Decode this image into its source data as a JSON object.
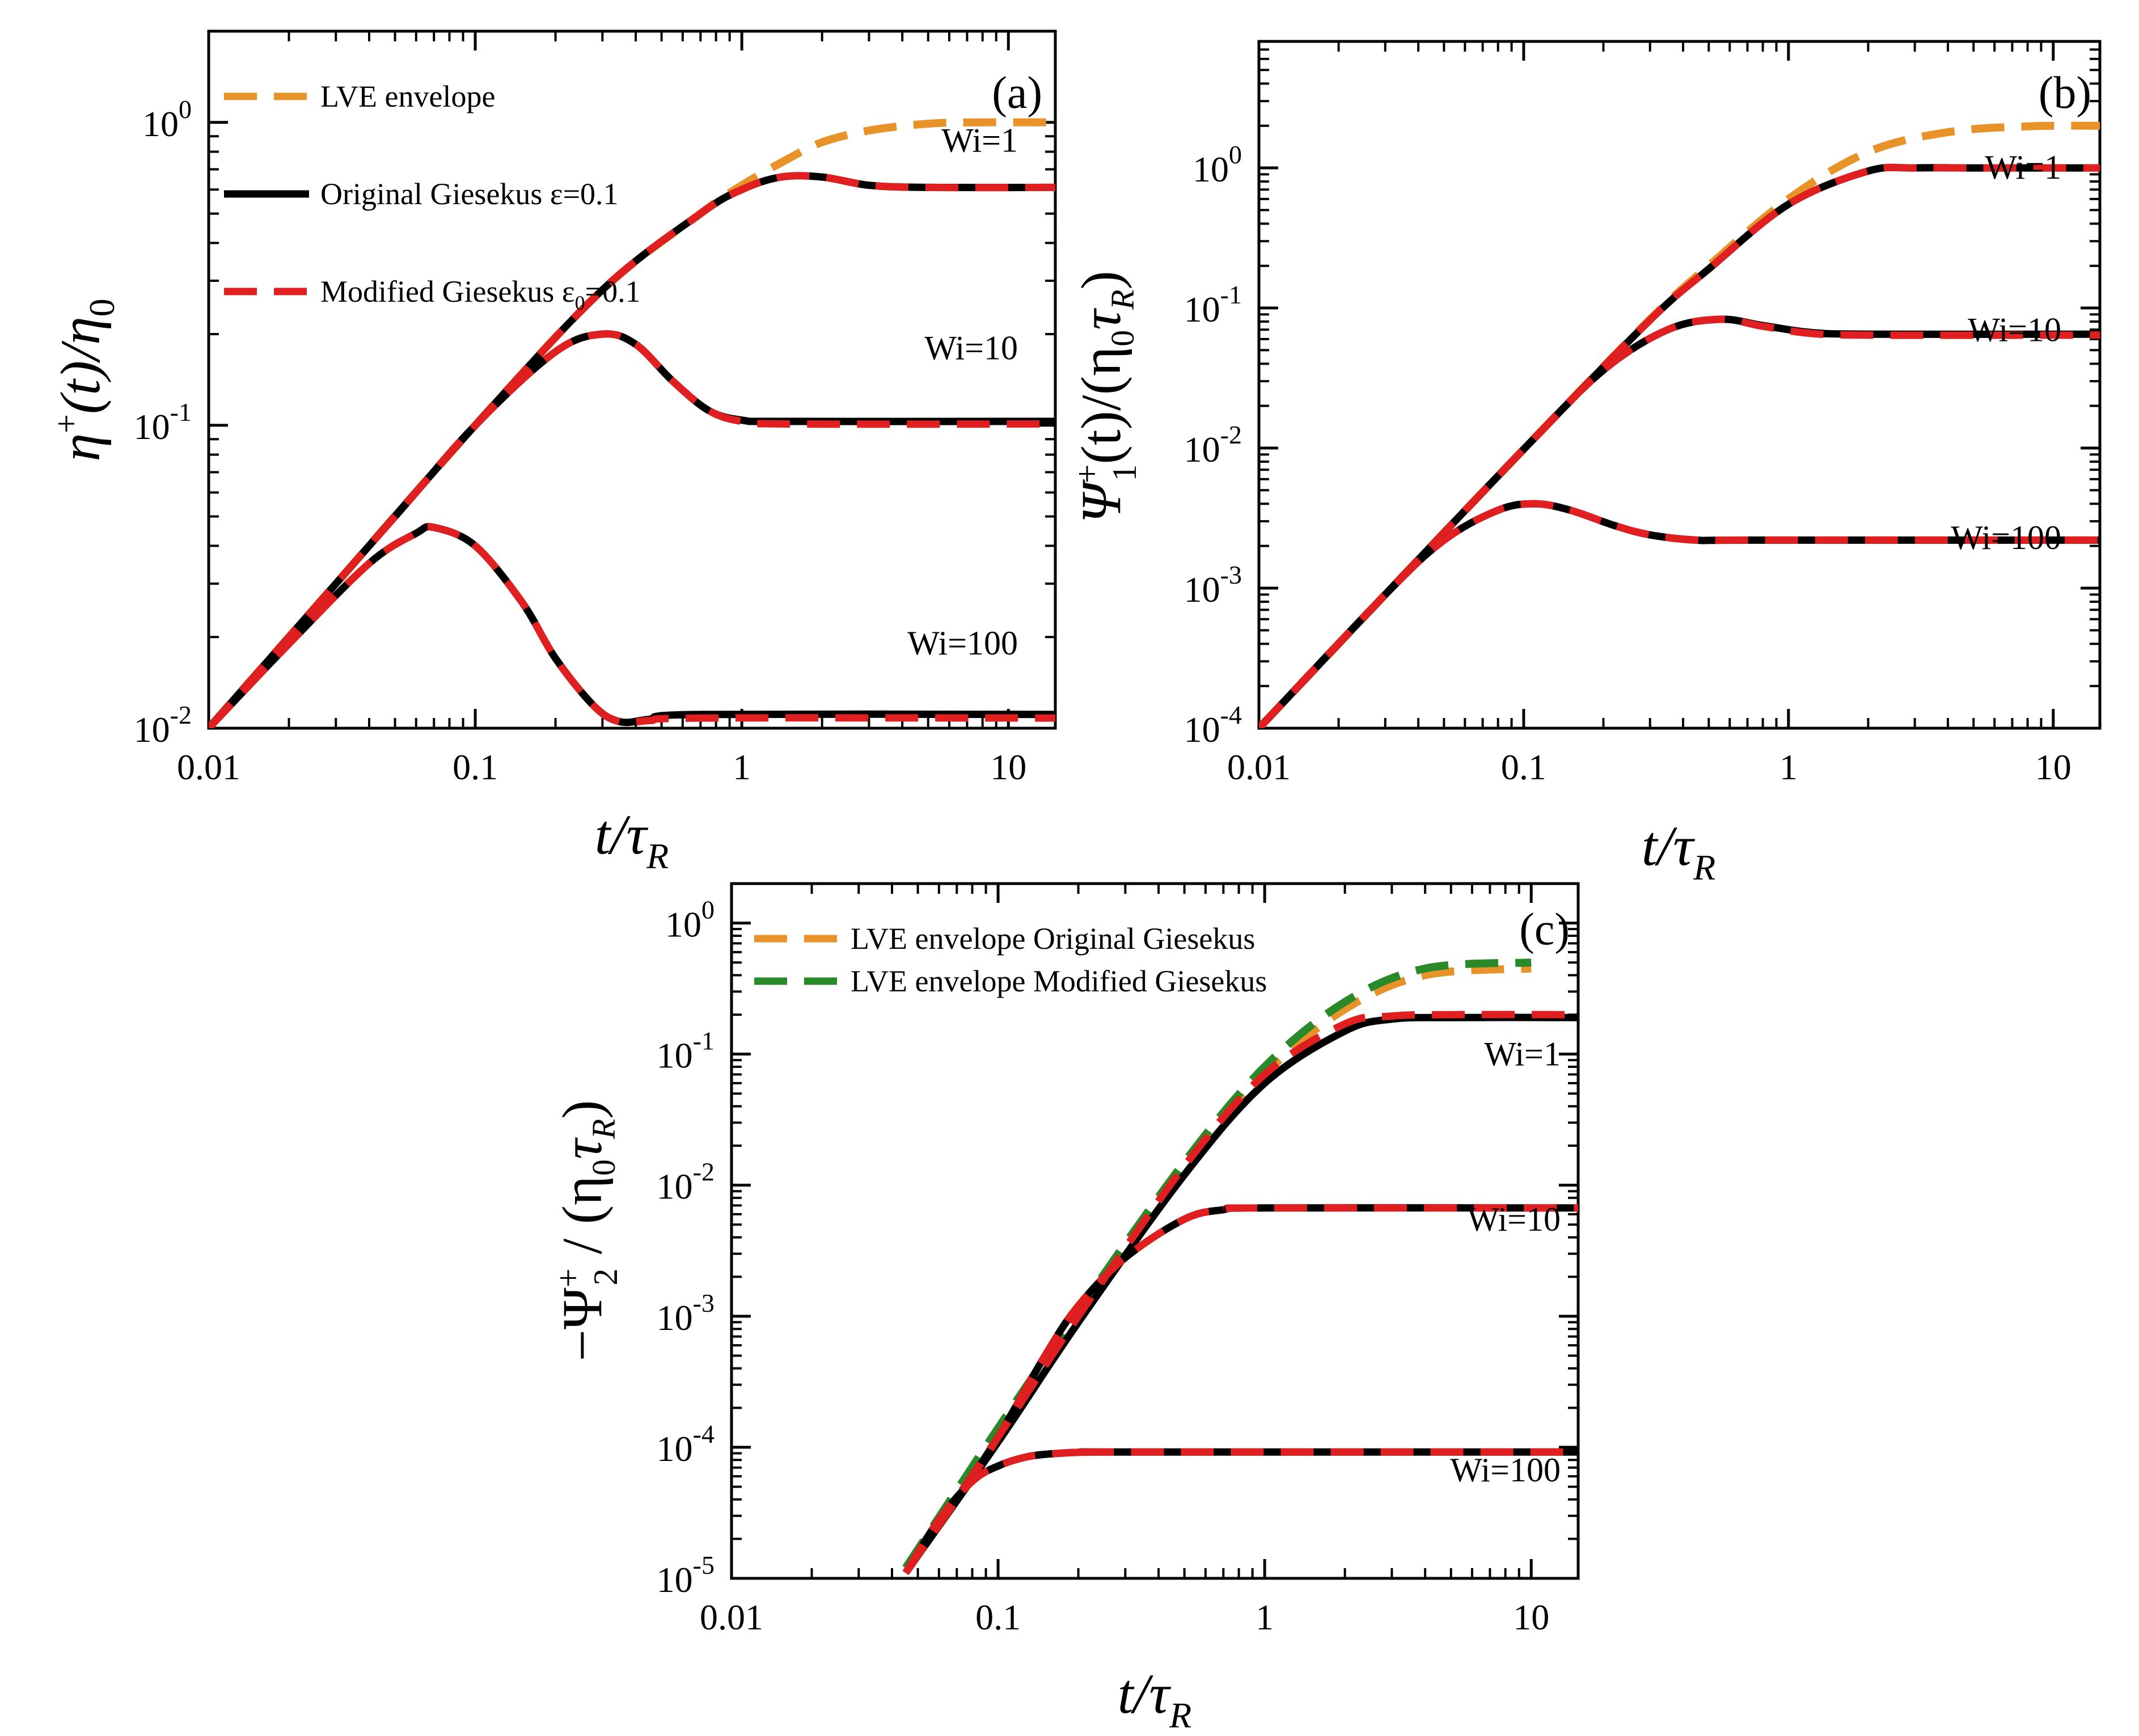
{
  "chart_data": [
    {
      "panel": "a",
      "type": "line",
      "panel_label": "(a)",
      "xlabel": "t/τ_R",
      "xlabel_parts": {
        "main": "t/τ",
        "sub": "R"
      },
      "ylabel": "η+(t)/η0",
      "ylabel_parts": {
        "main": "η",
        "sup": "+",
        "mid": "(t)/η",
        "sub": "0"
      },
      "xscale": "log",
      "yscale": "log",
      "xlim": [
        0.01,
        15
      ],
      "ylim": [
        0.01,
        2.0
      ],
      "xticks": [
        {
          "value": 0.01,
          "label": "0.01"
        },
        {
          "value": 0.1,
          "label": "0.1"
        },
        {
          "value": 1,
          "label": "1"
        },
        {
          "value": 10,
          "label": "10"
        }
      ],
      "yticks": [
        {
          "value": 0.01,
          "base": "10",
          "exp": "-2"
        },
        {
          "value": 0.1,
          "base": "10",
          "exp": "-1"
        },
        {
          "value": 1,
          "base": "10",
          "exp": "0"
        }
      ],
      "legend": {
        "location": "top-left",
        "entries": [
          {
            "label": "LVE envelope",
            "color": "#e8922a",
            "style": "dashed"
          },
          {
            "label": "Original Giesekus ε=0.1",
            "color": "#000000",
            "style": "solid"
          },
          {
            "label": "Modified Giesekus ε0=0.1",
            "color": "#e02020",
            "style": "dashed"
          }
        ]
      },
      "annotations": [
        {
          "text": "Wi=1",
          "at": [
            6.0,
            0.8
          ]
        },
        {
          "text": "Wi=10",
          "at": [
            6.0,
            0.165
          ]
        },
        {
          "text": "Wi=100",
          "at": [
            6.0,
            0.0175
          ]
        }
      ],
      "series": [
        {
          "name": "LVE envelope",
          "color": "#e8922a",
          "style": "dashed",
          "x": [
            0.01,
            0.03,
            0.1,
            0.3,
            0.7,
            1.0,
            1.5,
            2.0,
            3.0,
            5.0,
            8.0,
            15.0
          ],
          "y": [
            0.01,
            0.03,
            0.1,
            0.28,
            0.5,
            0.62,
            0.76,
            0.86,
            0.94,
            0.99,
            1.0,
            1.0
          ]
        },
        {
          "name": "Original Giesekus ε=0.1, Wi=1",
          "color": "#000000",
          "style": "solid",
          "x": [
            0.01,
            0.03,
            0.1,
            0.3,
            0.7,
            1.0,
            1.4,
            2.0,
            3.0,
            5.0,
            15.0
          ],
          "y": [
            0.01,
            0.03,
            0.1,
            0.28,
            0.5,
            0.6,
            0.66,
            0.66,
            0.62,
            0.61,
            0.61
          ]
        },
        {
          "name": "Modified Giesekus ε0=0.1, Wi=1",
          "color": "#e02020",
          "style": "dashed",
          "x": [
            0.01,
            0.03,
            0.1,
            0.3,
            0.7,
            1.0,
            1.4,
            2.0,
            3.0,
            5.0,
            15.0
          ],
          "y": [
            0.01,
            0.03,
            0.1,
            0.28,
            0.5,
            0.6,
            0.66,
            0.66,
            0.62,
            0.61,
            0.61
          ]
        },
        {
          "name": "Original Giesekus ε=0.1, Wi=10",
          "color": "#000000",
          "style": "solid",
          "x": [
            0.01,
            0.05,
            0.1,
            0.2,
            0.3,
            0.4,
            0.55,
            0.75,
            1.0,
            1.5,
            15.0
          ],
          "y": [
            0.01,
            0.05,
            0.1,
            0.175,
            0.2,
            0.185,
            0.14,
            0.112,
            0.104,
            0.103,
            0.103
          ]
        },
        {
          "name": "Modified Giesekus ε0=0.1, Wi=10",
          "color": "#e02020",
          "style": "dashed",
          "x": [
            0.01,
            0.05,
            0.1,
            0.2,
            0.3,
            0.4,
            0.55,
            0.75,
            1.0,
            1.5,
            15.0
          ],
          "y": [
            0.01,
            0.05,
            0.1,
            0.175,
            0.2,
            0.185,
            0.14,
            0.112,
            0.103,
            0.101,
            0.101
          ]
        },
        {
          "name": "Original Giesekus ε=0.1, Wi=100",
          "color": "#000000",
          "style": "solid",
          "x": [
            0.01,
            0.02,
            0.04,
            0.06,
            0.07,
            0.1,
            0.15,
            0.2,
            0.28,
            0.35,
            0.45,
            0.7,
            15.0
          ],
          "y": [
            0.01,
            0.019,
            0.035,
            0.044,
            0.046,
            0.04,
            0.026,
            0.017,
            0.0118,
            0.0105,
            0.0107,
            0.0111,
            0.0111
          ]
        },
        {
          "name": "Modified Giesekus ε0=0.1, Wi=100",
          "color": "#e02020",
          "style": "dashed",
          "x": [
            0.01,
            0.02,
            0.04,
            0.06,
            0.07,
            0.1,
            0.15,
            0.2,
            0.28,
            0.35,
            0.45,
            0.7,
            15.0
          ],
          "y": [
            0.01,
            0.019,
            0.035,
            0.044,
            0.046,
            0.04,
            0.026,
            0.017,
            0.0118,
            0.0105,
            0.0106,
            0.0108,
            0.0108
          ]
        }
      ]
    },
    {
      "panel": "b",
      "type": "line",
      "panel_label": "(b)",
      "xlabel": "t/τ_R",
      "xlabel_parts": {
        "main": "t/τ",
        "sub": "R"
      },
      "ylabel": "Ψ1+(t)/(η0τR)",
      "ylabel_parts": {
        "main": "Ψ",
        "sup": "+",
        "sub": "1",
        "rest": "(t)/(η",
        "sub2": "0",
        "tau": "τ",
        "sub3": "R",
        "close": ")"
      },
      "xscale": "log",
      "yscale": "log",
      "xlim": [
        0.01,
        15
      ],
      "ylim": [
        0.0001,
        8.0
      ],
      "xticks": [
        {
          "value": 0.01,
          "label": "0.01"
        },
        {
          "value": 0.1,
          "label": "0.1"
        },
        {
          "value": 1,
          "label": "1"
        },
        {
          "value": 10,
          "label": "10"
        }
      ],
      "yticks": [
        {
          "value": 0.0001,
          "base": "10",
          "exp": "-4"
        },
        {
          "value": 0.001,
          "base": "10",
          "exp": "-3"
        },
        {
          "value": 0.01,
          "base": "10",
          "exp": "-2"
        },
        {
          "value": 0.1,
          "base": "10",
          "exp": "-1"
        },
        {
          "value": 1,
          "base": "10",
          "exp": "0"
        }
      ],
      "annotations": [
        {
          "text": "Wi=1",
          "at": [
            6.0,
            0.84
          ]
        },
        {
          "text": "Wi=10",
          "at": [
            6.0,
            0.058
          ]
        },
        {
          "text": "Wi=100",
          "at": [
            6.0,
            0.0019
          ]
        }
      ],
      "series": [
        {
          "name": "LVE envelope",
          "color": "#e8922a",
          "style": "dashed",
          "x": [
            0.01,
            0.03,
            0.1,
            0.3,
            0.5,
            1.0,
            2.0,
            4.0,
            8.0,
            15.0
          ],
          "y": [
            0.0001,
            0.0009,
            0.0098,
            0.083,
            0.2,
            0.6,
            1.3,
            1.8,
            1.98,
            2.0
          ]
        },
        {
          "name": "Original Giesekus ε=0.1, Wi=1",
          "color": "#000000",
          "style": "solid",
          "x": [
            0.01,
            0.03,
            0.1,
            0.3,
            0.5,
            1.0,
            2.0,
            3.0,
            5.0,
            15.0
          ],
          "y": [
            0.0001,
            0.0009,
            0.0098,
            0.082,
            0.19,
            0.55,
            0.95,
            1.0,
            1.0,
            1.0
          ]
        },
        {
          "name": "Modified Giesekus ε0=0.1, Wi=1",
          "color": "#e02020",
          "style": "dashed",
          "x": [
            0.01,
            0.03,
            0.1,
            0.3,
            0.5,
            1.0,
            2.0,
            3.0,
            5.0,
            15.0
          ],
          "y": [
            0.0001,
            0.0009,
            0.0098,
            0.082,
            0.19,
            0.55,
            0.95,
            1.0,
            1.0,
            1.0
          ]
        },
        {
          "name": "Original Giesekus ε=0.1, Wi=10",
          "color": "#000000",
          "style": "solid",
          "x": [
            0.01,
            0.03,
            0.1,
            0.2,
            0.35,
            0.55,
            0.8,
            1.2,
            2.0,
            15.0
          ],
          "y": [
            0.0001,
            0.0009,
            0.0098,
            0.036,
            0.07,
            0.083,
            0.075,
            0.067,
            0.065,
            0.065
          ]
        },
        {
          "name": "Modified Giesekus ε0=0.1, Wi=10",
          "color": "#e02020",
          "style": "dashed",
          "x": [
            0.01,
            0.03,
            0.1,
            0.2,
            0.35,
            0.55,
            0.8,
            1.2,
            2.0,
            15.0
          ],
          "y": [
            0.0001,
            0.0009,
            0.0098,
            0.036,
            0.07,
            0.083,
            0.074,
            0.066,
            0.064,
            0.064
          ]
        },
        {
          "name": "Original Giesekus ε=0.1, Wi=100",
          "color": "#000000",
          "style": "solid",
          "x": [
            0.01,
            0.03,
            0.05,
            0.08,
            0.11,
            0.15,
            0.22,
            0.3,
            0.45,
            0.7,
            15.0
          ],
          "y": [
            0.0001,
            0.0009,
            0.0022,
            0.0036,
            0.004,
            0.0036,
            0.0028,
            0.0024,
            0.0022,
            0.0022,
            0.0022
          ]
        },
        {
          "name": "Modified Giesekus ε0=0.1, Wi=100",
          "color": "#e02020",
          "style": "dashed",
          "x": [
            0.01,
            0.03,
            0.05,
            0.08,
            0.11,
            0.15,
            0.22,
            0.3,
            0.45,
            0.7,
            15.0
          ],
          "y": [
            0.0001,
            0.0009,
            0.0022,
            0.0036,
            0.004,
            0.0036,
            0.0028,
            0.0024,
            0.0022,
            0.0022,
            0.0022
          ]
        }
      ]
    },
    {
      "panel": "c",
      "type": "line",
      "panel_label": "(c)",
      "xlabel": "t/τ_R",
      "xlabel_parts": {
        "main": "t/τ",
        "sub": "R"
      },
      "ylabel": "−Ψ2+/(η0τR)",
      "ylabel_parts": {
        "main": "−Ψ",
        "sup": "+",
        "sub": "2",
        "rest": " / (η",
        "sub2": "0",
        "tau": "τ",
        "sub3": "R",
        "close": ")"
      },
      "xscale": "log",
      "yscale": "log",
      "xlim": [
        0.01,
        15
      ],
      "ylim": [
        1e-05,
        2.0
      ],
      "xticks": [
        {
          "value": 0.01,
          "label": "0.01"
        },
        {
          "value": 0.1,
          "label": "0.1"
        },
        {
          "value": 1,
          "label": "1"
        },
        {
          "value": 10,
          "label": "10"
        }
      ],
      "yticks": [
        {
          "value": 1e-05,
          "base": "10",
          "exp": "-5"
        },
        {
          "value": 0.0001,
          "base": "10",
          "exp": "-4"
        },
        {
          "value": 0.001,
          "base": "10",
          "exp": "-3"
        },
        {
          "value": 0.01,
          "base": "10",
          "exp": "-2"
        },
        {
          "value": 0.1,
          "base": "10",
          "exp": "-1"
        },
        {
          "value": 1,
          "base": "10",
          "exp": "0"
        }
      ],
      "legend": {
        "location": "top-left",
        "entries": [
          {
            "label": "LVE envelope Original Giesekus",
            "color": "#e8922a",
            "style": "dashed"
          },
          {
            "label": "LVE envelope Modified Giesekus",
            "color": "#2a8a2a",
            "style": "dashed"
          }
        ]
      },
      "annotations": [
        {
          "text": "Wi=1",
          "at": [
            5.5,
            0.082
          ]
        },
        {
          "text": "Wi=10",
          "at": [
            5.5,
            0.0045
          ]
        },
        {
          "text": "Wi=100",
          "at": [
            5.5,
            5.5e-05
          ]
        }
      ],
      "series": [
        {
          "name": "LVE envelope Original Giesekus",
          "color": "#e8922a",
          "style": "dashed",
          "x": [
            0.045,
            0.1,
            0.2,
            0.5,
            1.0,
            2.0,
            4.0,
            10.0
          ],
          "y": [
            1.2e-05,
            0.00013,
            0.001,
            0.013,
            0.07,
            0.22,
            0.4,
            0.45
          ]
        },
        {
          "name": "LVE envelope Modified Giesekus",
          "color": "#2a8a2a",
          "style": "dashed",
          "x": [
            0.045,
            0.1,
            0.2,
            0.5,
            1.0,
            2.0,
            4.0,
            10.0
          ],
          "y": [
            1.2e-05,
            0.00014,
            0.0011,
            0.015,
            0.08,
            0.25,
            0.45,
            0.5
          ]
        },
        {
          "name": "Original Giesekus ε=0.1, Wi=1",
          "color": "#000000",
          "style": "solid",
          "x": [
            0.045,
            0.1,
            0.2,
            0.5,
            1.0,
            2.0,
            3.0,
            5.0,
            15.0
          ],
          "y": [
            1.1e-05,
            0.00011,
            0.0009,
            0.012,
            0.06,
            0.15,
            0.185,
            0.19,
            0.19
          ]
        },
        {
          "name": "Modified Giesekus ε0=0.1, Wi=1",
          "color": "#e02020",
          "style": "dashed",
          "x": [
            0.045,
            0.1,
            0.2,
            0.5,
            1.0,
            2.0,
            3.0,
            5.0,
            15.0
          ],
          "y": [
            1.1e-05,
            0.00012,
            0.001,
            0.014,
            0.07,
            0.17,
            0.195,
            0.2,
            0.2
          ]
        },
        {
          "name": "Original Giesekus ε=0.1, Wi=10",
          "color": "#000000",
          "style": "solid",
          "x": [
            0.045,
            0.07,
            0.1,
            0.15,
            0.2,
            0.3,
            0.5,
            0.7,
            1.0,
            15.0
          ],
          "y": [
            1.1e-05,
            4e-05,
            0.00012,
            0.0005,
            0.0012,
            0.0028,
            0.0055,
            0.0065,
            0.0067,
            0.0067
          ]
        },
        {
          "name": "Modified Giesekus ε0=0.1, Wi=10",
          "color": "#e02020",
          "style": "dashed",
          "x": [
            0.045,
            0.07,
            0.1,
            0.15,
            0.2,
            0.3,
            0.5,
            0.7,
            1.0,
            15.0
          ],
          "y": [
            1.1e-05,
            4e-05,
            0.00012,
            0.0005,
            0.0012,
            0.0028,
            0.0055,
            0.0065,
            0.0067,
            0.0067
          ]
        },
        {
          "name": "Original Giesekus ε=0.1, Wi=100",
          "color": "#000000",
          "style": "solid",
          "x": [
            0.045,
            0.06,
            0.08,
            0.1,
            0.13,
            0.17,
            0.22,
            0.3,
            15.0
          ],
          "y": [
            1.1e-05,
            2.8e-05,
            5.5e-05,
            7.2e-05,
            8.5e-05,
            9e-05,
            9.2e-05,
            9.2e-05,
            9.2e-05
          ]
        },
        {
          "name": "Modified Giesekus ε0=0.1, Wi=100",
          "color": "#e02020",
          "style": "dashed",
          "x": [
            0.045,
            0.06,
            0.08,
            0.1,
            0.13,
            0.17,
            0.22,
            0.3,
            15.0
          ],
          "y": [
            1.1e-05,
            2.8e-05,
            5.5e-05,
            7.2e-05,
            8.5e-05,
            9e-05,
            9.2e-05,
            9.2e-05,
            9.2e-05
          ]
        }
      ]
    }
  ]
}
